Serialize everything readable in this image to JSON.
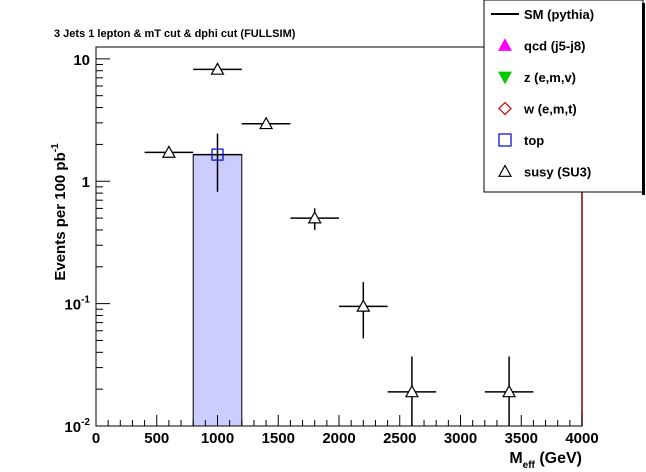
{
  "chart_data": {
    "type": "bar",
    "title": "3 Jets 1 lepton & mT cut & dphi cut (FULLSIM)",
    "ylabel_main": "Events per 100 pb",
    "ylabel_sup": "-1",
    "xlabel_main": "M",
    "xlabel_sub": "eff",
    "xlabel_unit": " (GeV)",
    "y_scale": "log",
    "xlim": [
      0,
      4000
    ],
    "ylim": [
      0.01,
      12.5
    ],
    "x_ticks": [
      {
        "value": 0,
        "label": "0"
      },
      {
        "value": 500,
        "label": "500"
      },
      {
        "value": 1000,
        "label": "1000"
      },
      {
        "value": 1500,
        "label": "1500"
      },
      {
        "value": 2000,
        "label": "2000"
      },
      {
        "value": 2500,
        "label": "2500"
      },
      {
        "value": 3000,
        "label": "3000"
      },
      {
        "value": 3500,
        "label": "3500"
      },
      {
        "value": 4000,
        "label": "4000"
      }
    ],
    "y_ticks": [
      {
        "value": 0.01,
        "base": "10",
        "exp": "-2"
      },
      {
        "value": 0.1,
        "base": "10",
        "exp": "-1"
      },
      {
        "value": 1,
        "base": "1",
        "exp": ""
      },
      {
        "value": 10,
        "base": "10",
        "exp": ""
      }
    ],
    "legend_position": "top-right",
    "legend": [
      {
        "label": "SM (pythia)",
        "marker": "line",
        "color": "#000000"
      },
      {
        "label": "qcd (j5-j8)",
        "marker": "triangle-up-filled",
        "color": "#ff00ff"
      },
      {
        "label": "z (e,m,v)",
        "marker": "triangle-down-filled",
        "color": "#00cc00"
      },
      {
        "label": "w (e,m,t)",
        "marker": "diamond-open",
        "color": "#cc0000"
      },
      {
        "label": "top",
        "marker": "square-open",
        "color": "#0000cc"
      },
      {
        "label": "susy (SU3)",
        "marker": "triangle-up-open",
        "color": "#000000"
      }
    ],
    "series": [
      {
        "name": "top",
        "style": "histogram",
        "fill": "#ccccff",
        "edge": "#000000",
        "bins": [
          {
            "x_low": 800,
            "x_high": 1200,
            "value": 1.65
          }
        ],
        "points": [
          {
            "x": 1000,
            "y": 1.65,
            "y_low": 0.82,
            "y_high": 2.45,
            "x_half_width": 200
          }
        ]
      },
      {
        "name": "susy (SU3)",
        "style": "markers",
        "points": [
          {
            "x": 600,
            "y": 1.72,
            "x_half_width": 200
          },
          {
            "x": 1000,
            "y": 8.2,
            "x_half_width": 200
          },
          {
            "x": 1400,
            "y": 2.95,
            "x_half_width": 200
          },
          {
            "x": 1800,
            "y": 0.5,
            "y_low": 0.4,
            "y_high": 0.6,
            "x_half_width": 200
          },
          {
            "x": 2200,
            "y": 0.095,
            "y_low": 0.052,
            "y_high": 0.15,
            "x_half_width": 200
          },
          {
            "x": 2600,
            "y": 0.019,
            "y_low": 0.01,
            "y_high": 0.037,
            "x_half_width": 200
          },
          {
            "x": 3400,
            "y": 0.019,
            "y_low": 0.01,
            "y_high": 0.037,
            "x_half_width": 200
          }
        ]
      }
    ],
    "sm_line": {
      "name": "SM (pythia)",
      "color": "#800000",
      "x": 4000,
      "y_low": 0.01,
      "y_high": 7.0
    }
  }
}
